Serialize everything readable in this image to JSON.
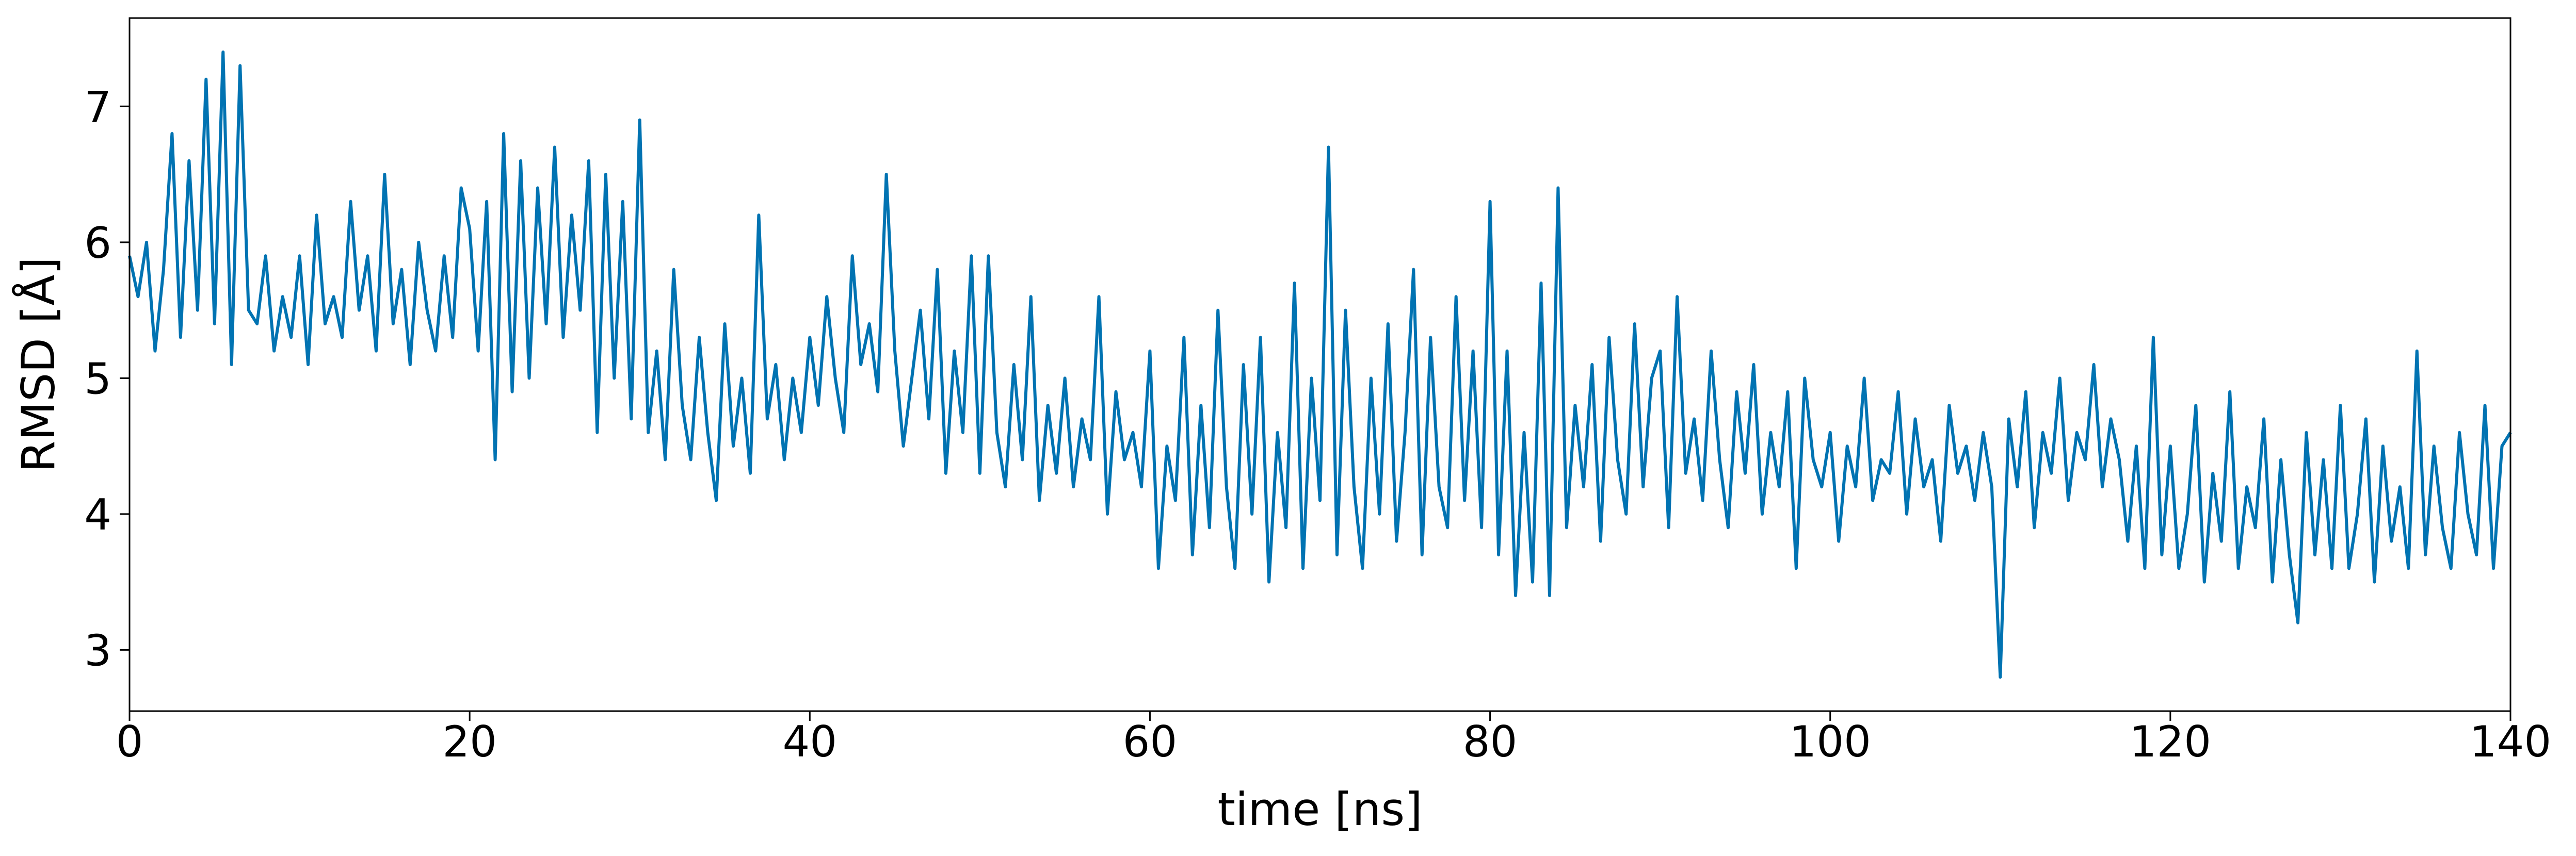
{
  "chart_data": {
    "type": "line",
    "xlabel": "time [ns]",
    "ylabel": "RMSD [Å]",
    "color": "#0173b2",
    "xlim": [
      0,
      140
    ],
    "ylim": [
      2.55,
      7.65
    ],
    "xticks": [
      0,
      20,
      40,
      60,
      80,
      100,
      120,
      140
    ],
    "yticks": [
      3,
      4,
      5,
      6,
      7
    ],
    "grid": false,
    "x": [
      0,
      0.5,
      1,
      1.5,
      2,
      2.5,
      3,
      3.5,
      4,
      4.5,
      5,
      5.5,
      6,
      6.5,
      7,
      7.5,
      8,
      8.5,
      9,
      9.5,
      10,
      10.5,
      11,
      11.5,
      12,
      12.5,
      13,
      13.5,
      14,
      14.5,
      15,
      15.5,
      16,
      16.5,
      17,
      17.5,
      18,
      18.5,
      19,
      19.5,
      20,
      20.5,
      21,
      21.5,
      22,
      22.5,
      23,
      23.5,
      24,
      24.5,
      25,
      25.5,
      26,
      26.5,
      27,
      27.5,
      28,
      28.5,
      29,
      29.5,
      30,
      30.5,
      31,
      31.5,
      32,
      32.5,
      33,
      33.5,
      34,
      34.5,
      35,
      35.5,
      36,
      36.5,
      37,
      37.5,
      38,
      38.5,
      39,
      39.5,
      40,
      40.5,
      41,
      41.5,
      42,
      42.5,
      43,
      43.5,
      44,
      44.5,
      45,
      45.5,
      46,
      46.5,
      47,
      47.5,
      48,
      48.5,
      49,
      49.5,
      50,
      50.5,
      51,
      51.5,
      52,
      52.5,
      53,
      53.5,
      54,
      54.5,
      55,
      55.5,
      56,
      56.5,
      57,
      57.5,
      58,
      58.5,
      59,
      59.5,
      60,
      60.5,
      61,
      61.5,
      62,
      62.5,
      63,
      63.5,
      64,
      64.5,
      65,
      65.5,
      66,
      66.5,
      67,
      67.5,
      68,
      68.5,
      69,
      69.5,
      70,
      70.5,
      71,
      71.5,
      72,
      72.5,
      73,
      73.5,
      74,
      74.5,
      75,
      75.5,
      76,
      76.5,
      77,
      77.5,
      78,
      78.5,
      79,
      79.5,
      80,
      80.5,
      81,
      81.5,
      82,
      82.5,
      83,
      83.5,
      84,
      84.5,
      85,
      85.5,
      86,
      86.5,
      87,
      87.5,
      88,
      88.5,
      89,
      89.5,
      90,
      90.5,
      91,
      91.5,
      92,
      92.5,
      93,
      93.5,
      94,
      94.5,
      95,
      95.5,
      96,
      96.5,
      97,
      97.5,
      98,
      98.5,
      99,
      99.5,
      100,
      100.5,
      101,
      101.5,
      102,
      102.5,
      103,
      103.5,
      104,
      104.5,
      105,
      105.5,
      106,
      106.5,
      107,
      107.5,
      108,
      108.5,
      109,
      109.5,
      110,
      110.5,
      111,
      111.5,
      112,
      112.5,
      113,
      113.5,
      114,
      114.5,
      115,
      115.5,
      116,
      116.5,
      117,
      117.5,
      118,
      118.5,
      119,
      119.5,
      120,
      120.5,
      121,
      121.5,
      122,
      122.5,
      123,
      123.5,
      124,
      124.5,
      125,
      125.5,
      126,
      126.5,
      127,
      127.5,
      128,
      128.5,
      129,
      129.5,
      130,
      130.5,
      131,
      131.5,
      132,
      132.5,
      133,
      133.5,
      134,
      134.5,
      135,
      135.5,
      136,
      136.5,
      137,
      137.5,
      138,
      138.5,
      139,
      139.5,
      140
    ],
    "values": [
      5.9,
      5.6,
      6.0,
      5.2,
      5.8,
      6.8,
      5.3,
      6.6,
      5.5,
      7.2,
      5.4,
      7.4,
      5.1,
      7.3,
      5.5,
      5.4,
      5.9,
      5.2,
      5.6,
      5.3,
      5.9,
      5.1,
      6.2,
      5.4,
      5.6,
      5.3,
      6.3,
      5.5,
      5.9,
      5.2,
      6.5,
      5.4,
      5.8,
      5.1,
      6.0,
      5.5,
      5.2,
      5.9,
      5.3,
      6.4,
      6.1,
      5.2,
      6.3,
      4.4,
      6.8,
      4.9,
      6.6,
      5.0,
      6.4,
      5.4,
      6.7,
      5.3,
      6.2,
      5.5,
      6.6,
      4.6,
      6.5,
      5.0,
      6.3,
      4.7,
      6.9,
      4.6,
      5.2,
      4.4,
      5.8,
      4.8,
      4.4,
      5.3,
      4.6,
      4.1,
      5.4,
      4.5,
      5.0,
      4.3,
      6.2,
      4.7,
      5.1,
      4.4,
      5.0,
      4.6,
      5.3,
      4.8,
      5.6,
      5.0,
      4.6,
      5.9,
      5.1,
      5.4,
      4.9,
      6.5,
      5.2,
      4.5,
      5.0,
      5.5,
      4.7,
      5.8,
      4.3,
      5.2,
      4.6,
      5.9,
      4.3,
      5.9,
      4.6,
      4.2,
      5.1,
      4.4,
      5.6,
      4.1,
      4.8,
      4.3,
      5.0,
      4.2,
      4.7,
      4.4,
      5.6,
      4.0,
      4.9,
      4.4,
      4.6,
      4.2,
      5.2,
      3.6,
      4.5,
      4.1,
      5.3,
      3.7,
      4.8,
      3.9,
      5.5,
      4.2,
      3.6,
      5.1,
      4.0,
      5.3,
      3.5,
      4.6,
      3.9,
      5.7,
      3.6,
      5.0,
      4.1,
      6.7,
      3.7,
      5.5,
      4.2,
      3.6,
      5.0,
      4.0,
      5.4,
      3.8,
      4.6,
      5.8,
      3.7,
      5.3,
      4.2,
      3.9,
      5.6,
      4.1,
      5.2,
      3.9,
      6.3,
      3.7,
      5.2,
      3.4,
      4.6,
      3.5,
      5.7,
      3.4,
      6.4,
      3.9,
      4.8,
      4.2,
      5.1,
      3.8,
      5.3,
      4.4,
      4.0,
      5.4,
      4.2,
      5.0,
      5.2,
      3.9,
      5.6,
      4.3,
      4.7,
      4.1,
      5.2,
      4.4,
      3.9,
      4.9,
      4.3,
      5.1,
      4.0,
      4.6,
      4.2,
      4.9,
      3.6,
      5.0,
      4.4,
      4.2,
      4.6,
      3.8,
      4.5,
      4.2,
      5.0,
      4.1,
      4.4,
      4.3,
      4.9,
      4.0,
      4.7,
      4.2,
      4.4,
      3.8,
      4.8,
      4.3,
      4.5,
      4.1,
      4.6,
      4.2,
      2.8,
      4.7,
      4.2,
      4.9,
      3.9,
      4.6,
      4.3,
      5.0,
      4.1,
      4.6,
      4.4,
      5.1,
      4.2,
      4.7,
      4.4,
      3.8,
      4.5,
      3.6,
      5.3,
      3.7,
      4.5,
      3.6,
      4.0,
      4.8,
      3.5,
      4.3,
      3.8,
      4.9,
      3.6,
      4.2,
      3.9,
      4.7,
      3.5,
      4.4,
      3.7,
      3.2,
      4.6,
      3.7,
      4.4,
      3.6,
      4.8,
      3.6,
      4.0,
      4.7,
      3.5,
      4.5,
      3.8,
      4.2,
      3.6,
      5.2,
      3.7,
      4.5,
      3.9,
      3.6,
      4.6,
      4.0,
      3.7,
      4.8,
      3.6,
      4.5,
      4.6
    ]
  }
}
